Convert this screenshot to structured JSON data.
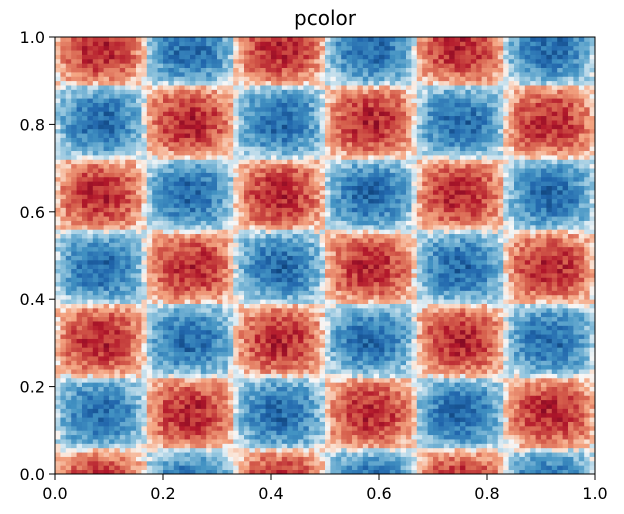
{
  "chart_data": {
    "type": "heatmap",
    "title": "pcolor",
    "xlabel": "",
    "ylabel": "",
    "xlim": [
      0.0,
      1.0
    ],
    "ylim": [
      0.0,
      1.0
    ],
    "x_ticks": [
      "0.0",
      "0.2",
      "0.4",
      "0.6",
      "0.8",
      "1.0"
    ],
    "y_ticks": [
      "0.0",
      "0.2",
      "0.4",
      "0.6",
      "0.8",
      "1.0"
    ],
    "grid": false,
    "colormap": "RdBu_r",
    "value_range": [
      -1,
      1
    ],
    "field": {
      "formula": "sin(2*pi*3*x) * sin(2*pi*3*(y + 0.11)) plus small noise",
      "x_frequency_cycles": 3,
      "y_frequency_cycles": 3,
      "y_phase": 0.11,
      "noise_amplitude": 0.18,
      "cells_per_axis": 100
    },
    "colors": {
      "strong_negative": "#053061",
      "negative": "#2166ac",
      "light_negative": "#92c5de",
      "zero": "#f7f7f7",
      "light_positive": "#f4a582",
      "positive": "#d6604d",
      "strong_positive": "#67001f"
    }
  }
}
